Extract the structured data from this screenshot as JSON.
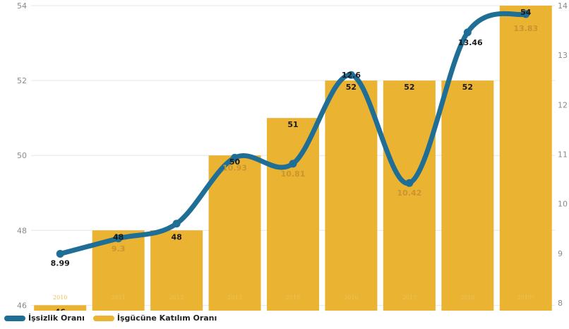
{
  "chart_data": {
    "type": "bar",
    "categories": [
      "2010",
      "2011",
      "2012",
      "2013",
      "2015",
      "2016",
      "2017",
      "2018",
      "2019*"
    ],
    "series": [
      {
        "name": "İşgücüne Katılım Oranı",
        "type": "bar",
        "axis": "left",
        "color": "#ebb332",
        "values": [
          46,
          48,
          48,
          50,
          51,
          52,
          52,
          52,
          54
        ]
      },
      {
        "name": "İşsizlik Oranı",
        "type": "line",
        "axis": "right",
        "color": "#1f6e96",
        "values": [
          8.99,
          9.3,
          9.6,
          10.93,
          10.81,
          12.6,
          10.42,
          13.46,
          13.83
        ],
        "labels": [
          "8.99",
          "9.3",
          "",
          "10.93",
          "10.81",
          "12.6",
          "10.42",
          "13.46",
          "13.83"
        ]
      }
    ],
    "y_left": {
      "ylim": [
        45.8,
        54
      ],
      "ticks": [
        46,
        48,
        50,
        52,
        54
      ]
    },
    "y_right": {
      "ylim": [
        7.8,
        14
      ],
      "ticks": [
        8,
        9,
        10,
        11,
        12,
        13,
        14
      ]
    },
    "grid": true,
    "legend_position": "bottom-left"
  },
  "legend": {
    "items": [
      {
        "label": "İşsizlik Oranı",
        "color": "#1f6e96"
      },
      {
        "label": "İşgücüne Katılım Oranı",
        "color": "#ebb332"
      }
    ]
  }
}
